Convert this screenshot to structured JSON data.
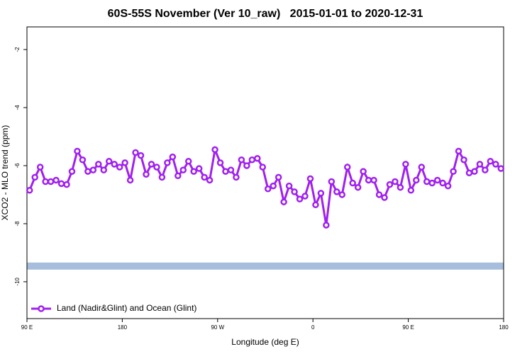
{
  "chart_data": {
    "type": "line",
    "title": "60S-55S November (Ver 10_raw)   2015-01-01 to 2020-12-31",
    "xlabel": "Longitude (deg E)",
    "ylabel": "XCO2 - MLO trend (ppm)",
    "xlim": [
      90,
      540
    ],
    "ylim": [
      -11.27,
      -1.22
    ],
    "xticks": [
      {
        "value": 90,
        "label": "90 E"
      },
      180,
      {
        "value": 270,
        "label": "90 W"
      },
      {
        "value": 360,
        "label": "0"
      },
      {
        "value": 450,
        "label": "90 E"
      },
      {
        "value": 540,
        "label": "180"
      }
    ],
    "yticks": [
      -2,
      -4,
      -6,
      -8,
      -10
    ],
    "legend": "bottom-left",
    "band": {
      "value": -9.46,
      "color": "#a6bddb"
    },
    "x": [
      92.5,
      97.5,
      102.5,
      107.5,
      112.5,
      117.5,
      122.5,
      127.5,
      132.5,
      137.5,
      142.5,
      147.5,
      152.5,
      157.5,
      162.5,
      167.5,
      172.5,
      177.5,
      182.5,
      187.5,
      192.5,
      197.5,
      202.5,
      207.5,
      212.5,
      217.5,
      222.5,
      227.5,
      232.5,
      237.5,
      242.5,
      247.5,
      252.5,
      257.5,
      262.5,
      267.5,
      272.5,
      277.5,
      282.5,
      287.5,
      292.5,
      297.5,
      302.5,
      307.5,
      312.5,
      317.5,
      322.5,
      327.5,
      332.5,
      337.5,
      342.5,
      347.5,
      352.5,
      357.5,
      362.5,
      367.5,
      372.5,
      377.5,
      382.5,
      387.5,
      392.5,
      397.5,
      402.5,
      407.5,
      412.5,
      417.5,
      422.5,
      427.5,
      432.5,
      437.5,
      442.5,
      447.5,
      452.5,
      457.5,
      462.5,
      467.5,
      472.5,
      477.5,
      482.5,
      487.5,
      492.5,
      497.5,
      502.5,
      507.5,
      512.5,
      517.5,
      522.5,
      527.5,
      532.5,
      537.5
    ],
    "series": [
      {
        "name": "Land (Nadir&Glint) and Ocean (Glint)",
        "color": "#a020f0",
        "values": [
          -6.85,
          -6.4,
          -6.05,
          -6.55,
          -6.55,
          -6.5,
          -6.62,
          -6.65,
          -6.2,
          -5.5,
          -5.8,
          -6.2,
          -6.15,
          -5.95,
          -6.15,
          -5.85,
          -5.95,
          -6.05,
          -5.9,
          -6.5,
          -5.55,
          -5.65,
          -6.3,
          -5.95,
          -6.05,
          -6.4,
          -5.9,
          -5.7,
          -6.35,
          -6.15,
          -5.85,
          -6.2,
          -6.1,
          -6.4,
          -6.5,
          -5.45,
          -5.9,
          -6.2,
          -6.15,
          -6.4,
          -5.8,
          -6.0,
          -5.8,
          -5.75,
          -6.05,
          -6.8,
          -6.7,
          -6.4,
          -7.25,
          -6.7,
          -6.9,
          -7.15,
          -7.05,
          -6.45,
          -7.35,
          -6.95,
          -8.05,
          -6.55,
          -6.9,
          -7.0,
          -6.05,
          -6.6,
          -6.75,
          -6.2,
          -6.5,
          -6.5,
          -7.0,
          -7.1,
          -6.65,
          -6.55,
          -6.75,
          -5.95,
          -6.85,
          -6.5,
          -6.05,
          -6.55,
          -6.6,
          -6.5,
          -6.6,
          -6.7,
          -6.2,
          -5.5,
          -5.8,
          -6.25,
          -6.2,
          -5.95,
          -6.15,
          -5.85,
          -5.95,
          -6.1
        ]
      }
    ]
  }
}
